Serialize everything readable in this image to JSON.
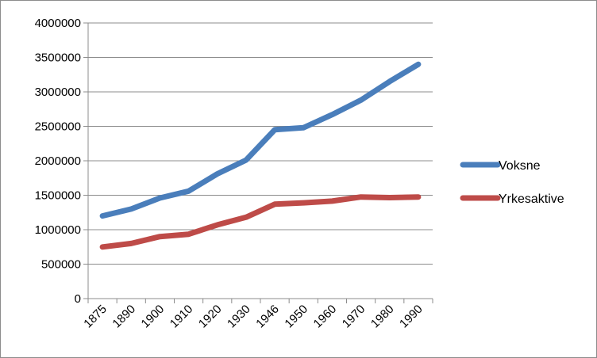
{
  "chart_data": {
    "type": "line",
    "title": "",
    "xlabel": "",
    "ylabel": "",
    "categories": [
      "1875",
      "1890",
      "1900",
      "1910",
      "1920",
      "1930",
      "1946",
      "1950",
      "1960",
      "1970",
      "1980",
      "1990"
    ],
    "ylim": [
      0,
      4000000
    ],
    "y_ticks": [
      "0",
      "500000",
      "1000000",
      "1500000",
      "2000000",
      "2500000",
      "3000000",
      "3500000",
      "4000000"
    ],
    "grid": "horizontal",
    "legend_position": "right",
    "series": [
      {
        "name": "Voksne",
        "color": "#4a7ebb",
        "values": [
          1200000,
          1300000,
          1460000,
          1560000,
          1810000,
          2010000,
          2450000,
          2480000,
          2670000,
          2880000,
          3150000,
          3400000
        ]
      },
      {
        "name": "Yrkesaktive",
        "color": "#be4b48",
        "values": [
          750000,
          800000,
          900000,
          935000,
          1070000,
          1180000,
          1370000,
          1390000,
          1415000,
          1475000,
          1465000,
          1475000
        ]
      }
    ]
  }
}
